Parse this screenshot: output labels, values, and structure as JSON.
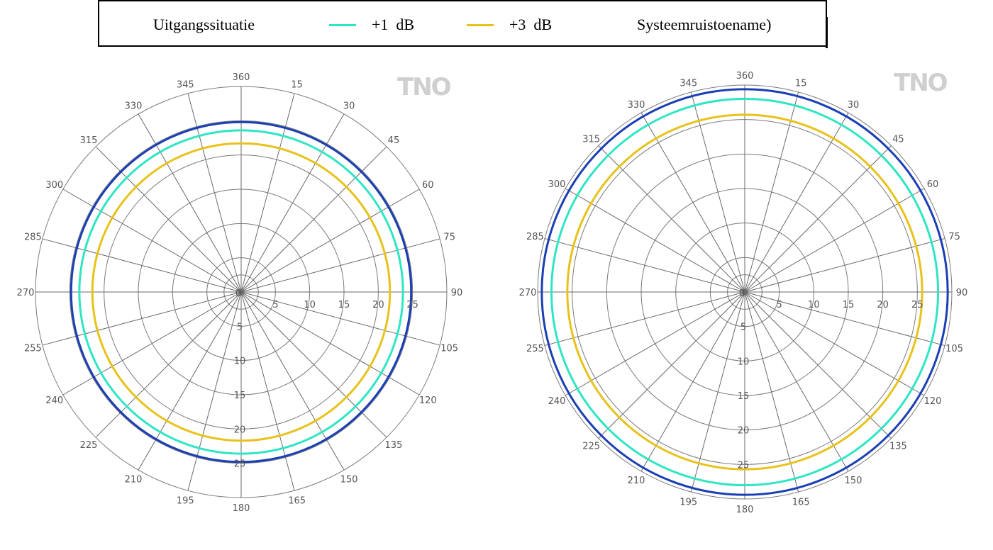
{
  "legend": {
    "items": [
      {
        "label": "Uitgangssituatie",
        "color": "#1a3fb5"
      },
      {
        "label": "+1  dB",
        "color": "#2ee6c4"
      },
      {
        "label": "+3  dB",
        "color": "#e8c21a"
      },
      {
        "label": "Systeemruistoename)",
        "color": "#1a3fb5"
      }
    ]
  },
  "logo_text": "TNO",
  "chart_data": [
    {
      "type": "polar",
      "angles": [
        "360",
        "15",
        "30",
        "45",
        "60",
        "75",
        "90",
        "105",
        "120",
        "135",
        "150",
        "165",
        "180",
        "195",
        "210",
        "225",
        "240",
        "255",
        "270",
        "285",
        "300",
        "315",
        "330",
        "345"
      ],
      "radial_ticks": [
        "0",
        "5",
        "10",
        "15",
        "20",
        "25"
      ],
      "radial_max": 30,
      "series": [
        {
          "name": "Uitgangssituatie",
          "color": "#1a3fb5",
          "r": 24.8
        },
        {
          "name": "+1  dB",
          "color": "#2ee6c4",
          "r": 23.6
        },
        {
          "name": "+3  dB",
          "color": "#e8c21a",
          "r": 21.7
        }
      ]
    },
    {
      "type": "polar",
      "angles": [
        "360",
        "15",
        "30",
        "45",
        "60",
        "75",
        "90",
        "105",
        "120",
        "135",
        "150",
        "165",
        "180",
        "195",
        "210",
        "225",
        "240",
        "255",
        "270",
        "285",
        "300",
        "315",
        "330",
        "345"
      ],
      "radial_ticks": [
        "0",
        "5",
        "10",
        "15",
        "20",
        "25"
      ],
      "radial_max": 30,
      "series": [
        {
          "name": "Uitgangssituatie",
          "color": "#1a3fb5",
          "r": 29.4
        },
        {
          "name": "+1  dB",
          "color": "#2ee6c4",
          "r": 28.0
        },
        {
          "name": "+3  dB",
          "color": "#e8c21a",
          "r": 25.7
        }
      ]
    }
  ]
}
